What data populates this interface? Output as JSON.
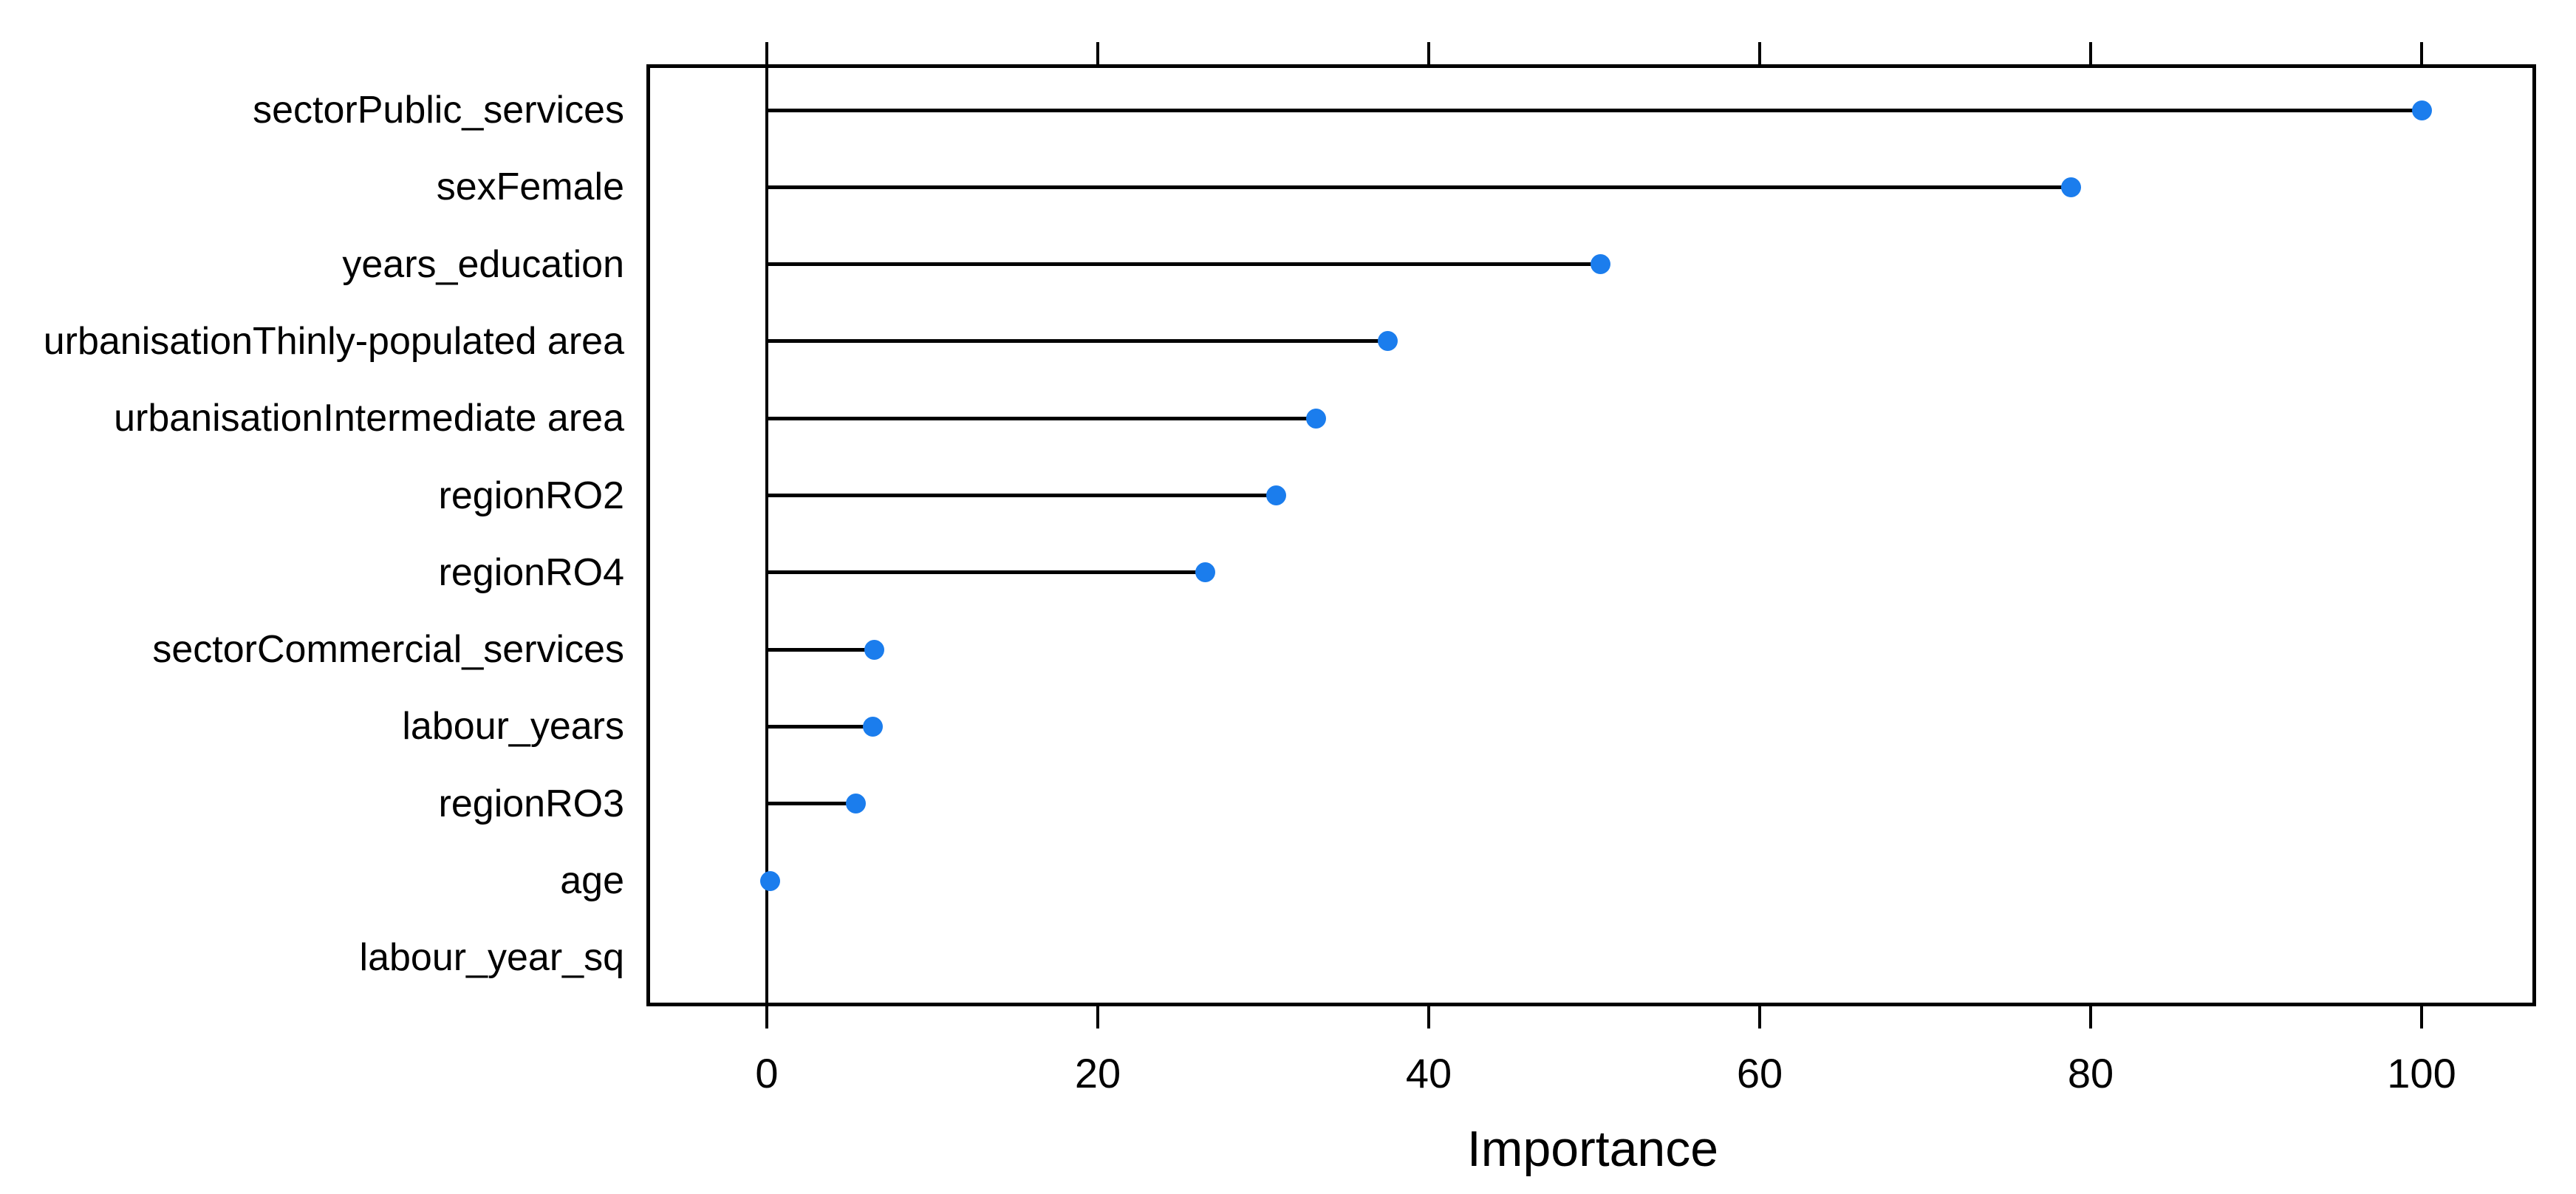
{
  "page": {
    "background": "#ffffff"
  },
  "chart_data": {
    "type": "scatter",
    "subtype": "cleveland-dotplot-lollipop",
    "orientation": "horizontal",
    "title": "",
    "xlabel": "Importance",
    "categories": [
      "sectorPublic_services",
      "sexFemale",
      "years_education",
      "urbanisationThinly-populated area",
      "urbanisationIntermediate area",
      "regionRO2",
      "regionRO4",
      "sectorCommercial_services",
      "labour_years",
      "regionRO3",
      "age",
      "labour_year_sq"
    ],
    "values": [
      100,
      78.8,
      50.4,
      37.5,
      33.2,
      30.8,
      26.5,
      6.5,
      6.4,
      5.4,
      0.2,
      0
    ],
    "x_ticks": [
      0,
      20,
      40,
      60,
      80,
      100
    ],
    "xlim": [
      -7.3,
      107
    ],
    "grid": false,
    "legend_position": "none",
    "marker_color": "#1b7ded",
    "line_color": "#000000",
    "axis_color": "#000000",
    "text_color": "#000000"
  }
}
